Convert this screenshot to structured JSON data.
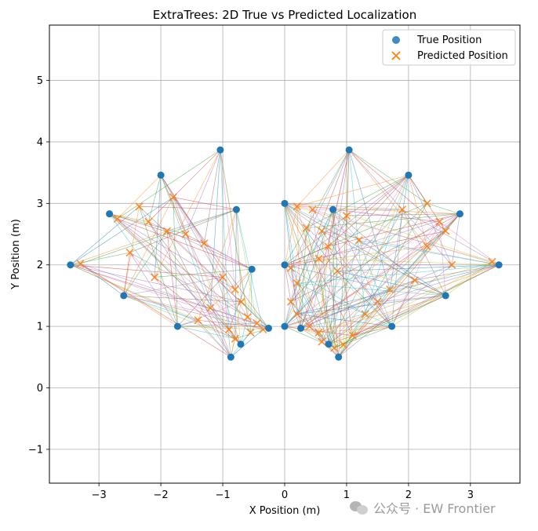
{
  "chart_data": {
    "type": "scatter",
    "title": "ExtraTrees: 2D True vs Predicted Localization",
    "xlabel": "X Position (m)",
    "ylabel": "Y Position (m)",
    "xlim": [
      -3.8,
      3.8
    ],
    "ylim": [
      -1.55,
      5.9
    ],
    "x_ticks": [
      -3,
      -2,
      -1,
      0,
      1,
      2,
      3
    ],
    "y_ticks": [
      -1,
      0,
      1,
      2,
      3,
      4,
      5
    ],
    "x_tick_labels": [
      "−3",
      "−2",
      "−1",
      "0",
      "1",
      "2",
      "3"
    ],
    "y_tick_labels": [
      "−1",
      "0",
      "1",
      "2",
      "3",
      "4",
      "5"
    ],
    "grid": true,
    "legend_position": "top-right",
    "series": [
      {
        "name": "True Position",
        "marker": "circle",
        "color": "#1f77b4",
        "points": [
          {
            "x": -3.46,
            "y": 2.0
          },
          {
            "x": -2.83,
            "y": 2.83
          },
          {
            "x": -2.6,
            "y": 1.5
          },
          {
            "x": -2.0,
            "y": 3.46
          },
          {
            "x": -1.73,
            "y": 1.0
          },
          {
            "x": -1.04,
            "y": 3.87
          },
          {
            "x": -0.78,
            "y": 2.9
          },
          {
            "x": -0.53,
            "y": 1.93
          },
          {
            "x": -0.87,
            "y": 0.5
          },
          {
            "x": -0.71,
            "y": 0.71
          },
          {
            "x": -0.26,
            "y": 0.97
          },
          {
            "x": 0.0,
            "y": 3.0
          },
          {
            "x": 0.0,
            "y": 2.0
          },
          {
            "x": 0.0,
            "y": 1.0
          },
          {
            "x": 0.26,
            "y": 0.97
          },
          {
            "x": 0.71,
            "y": 0.71
          },
          {
            "x": 0.87,
            "y": 0.5
          },
          {
            "x": 0.78,
            "y": 2.9
          },
          {
            "x": 1.04,
            "y": 3.87
          },
          {
            "x": 1.73,
            "y": 1.0
          },
          {
            "x": 2.0,
            "y": 3.46
          },
          {
            "x": 2.6,
            "y": 1.5
          },
          {
            "x": 2.83,
            "y": 2.83
          },
          {
            "x": 3.46,
            "y": 2.0
          }
        ]
      },
      {
        "name": "Predicted Position",
        "marker": "x",
        "color": "#ff7f0e",
        "points": [
          {
            "x": -2.35,
            "y": 2.95
          },
          {
            "x": -2.2,
            "y": 2.7
          },
          {
            "x": -1.9,
            "y": 2.55
          },
          {
            "x": -1.6,
            "y": 2.5
          },
          {
            "x": -2.5,
            "y": 2.2
          },
          {
            "x": -1.3,
            "y": 2.35
          },
          {
            "x": -1.0,
            "y": 1.8
          },
          {
            "x": -0.8,
            "y": 1.6
          },
          {
            "x": -0.7,
            "y": 1.4
          },
          {
            "x": -0.6,
            "y": 1.15
          },
          {
            "x": -0.45,
            "y": 1.05
          },
          {
            "x": -0.55,
            "y": 0.9
          },
          {
            "x": -0.35,
            "y": 0.95
          },
          {
            "x": -0.9,
            "y": 0.95
          },
          {
            "x": -0.8,
            "y": 0.8
          },
          {
            "x": -1.2,
            "y": 1.3
          },
          {
            "x": -1.4,
            "y": 1.1
          },
          {
            "x": -2.1,
            "y": 1.8
          },
          {
            "x": -3.3,
            "y": 2.02
          },
          {
            "x": -2.7,
            "y": 2.75
          },
          {
            "x": -1.8,
            "y": 3.1
          },
          {
            "x": 0.2,
            "y": 2.95
          },
          {
            "x": 0.45,
            "y": 2.9
          },
          {
            "x": 0.35,
            "y": 2.6
          },
          {
            "x": 0.6,
            "y": 2.55
          },
          {
            "x": 0.7,
            "y": 2.3
          },
          {
            "x": 0.55,
            "y": 2.1
          },
          {
            "x": 0.1,
            "y": 1.95
          },
          {
            "x": 0.2,
            "y": 1.7
          },
          {
            "x": 0.1,
            "y": 1.4
          },
          {
            "x": 0.2,
            "y": 1.2
          },
          {
            "x": 0.4,
            "y": 1.0
          },
          {
            "x": 0.55,
            "y": 0.9
          },
          {
            "x": 0.6,
            "y": 0.75
          },
          {
            "x": 0.8,
            "y": 0.65
          },
          {
            "x": 0.95,
            "y": 0.7
          },
          {
            "x": 1.1,
            "y": 0.85
          },
          {
            "x": 1.3,
            "y": 1.2
          },
          {
            "x": 1.5,
            "y": 1.4
          },
          {
            "x": 1.7,
            "y": 1.6
          },
          {
            "x": 2.1,
            "y": 1.75
          },
          {
            "x": 2.3,
            "y": 2.3
          },
          {
            "x": 2.5,
            "y": 2.7
          },
          {
            "x": 2.3,
            "y": 3.0
          },
          {
            "x": 1.9,
            "y": 2.9
          },
          {
            "x": 2.6,
            "y": 2.55
          },
          {
            "x": 3.35,
            "y": 2.05
          },
          {
            "x": 2.7,
            "y": 2.0
          },
          {
            "x": 1.2,
            "y": 2.4
          },
          {
            "x": 1.0,
            "y": 2.8
          },
          {
            "x": 0.85,
            "y": 1.9
          }
        ]
      }
    ],
    "watermark": "公众号 · EW Frontier"
  }
}
